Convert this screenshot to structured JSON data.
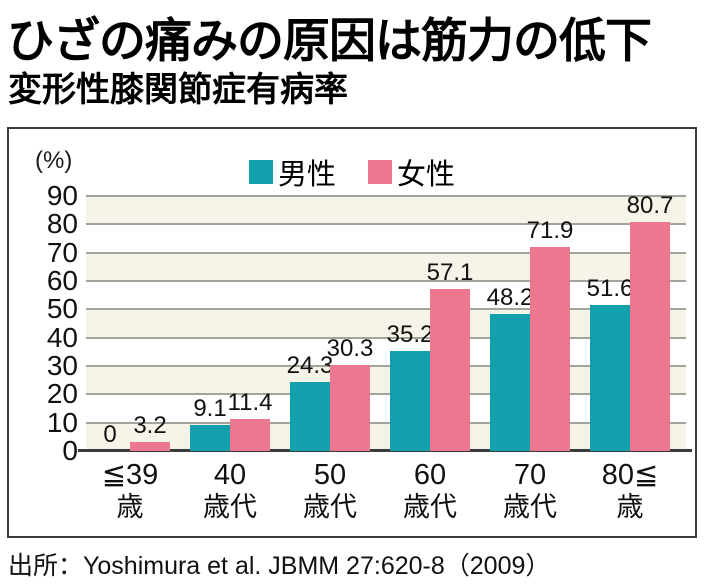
{
  "header": {
    "title": "ひざの痛みの原因は筋力の低下",
    "subtitle": "変形性膝関節症有病率"
  },
  "source": "出所：Yoshimura et al. JBMM 27:620-8（2009）",
  "chart_data": {
    "type": "bar",
    "title": "変形性膝関節症有病率",
    "unit_label": "(%)",
    "categories": [
      {
        "line1": "≦39",
        "line2": "歳"
      },
      {
        "line1": "40",
        "line2": "歳代"
      },
      {
        "line1": "50",
        "line2": "歳代"
      },
      {
        "line1": "60",
        "line2": "歳代"
      },
      {
        "line1": "70",
        "line2": "歳代"
      },
      {
        "line1": "80≦",
        "line2": "歳"
      }
    ],
    "series": [
      {
        "name": "男性",
        "color": "#11a0ac",
        "values": [
          0,
          9.1,
          24.3,
          35.2,
          48.2,
          51.6
        ],
        "value_labels": [
          "0",
          "9.1",
          "24.3",
          "35.2",
          "48.2",
          "51.6"
        ]
      },
      {
        "name": "女性",
        "color": "#ec7890",
        "values": [
          3.2,
          11.4,
          30.3,
          57.1,
          71.9,
          80.7
        ],
        "value_labels": [
          "3.2",
          "11.4",
          "30.3",
          "57.1",
          "71.9",
          "80.7"
        ]
      }
    ],
    "ylim": [
      0,
      90
    ],
    "yticks": [
      90,
      80,
      70,
      60,
      50,
      40,
      30,
      20,
      10,
      0
    ],
    "grid": true,
    "legend_position": "top-center",
    "colors": {
      "band_odd": "#f6f3e8",
      "band_even": "#ffffff",
      "gridline": "#a5a49c",
      "axis": "#3b3b3b"
    }
  }
}
